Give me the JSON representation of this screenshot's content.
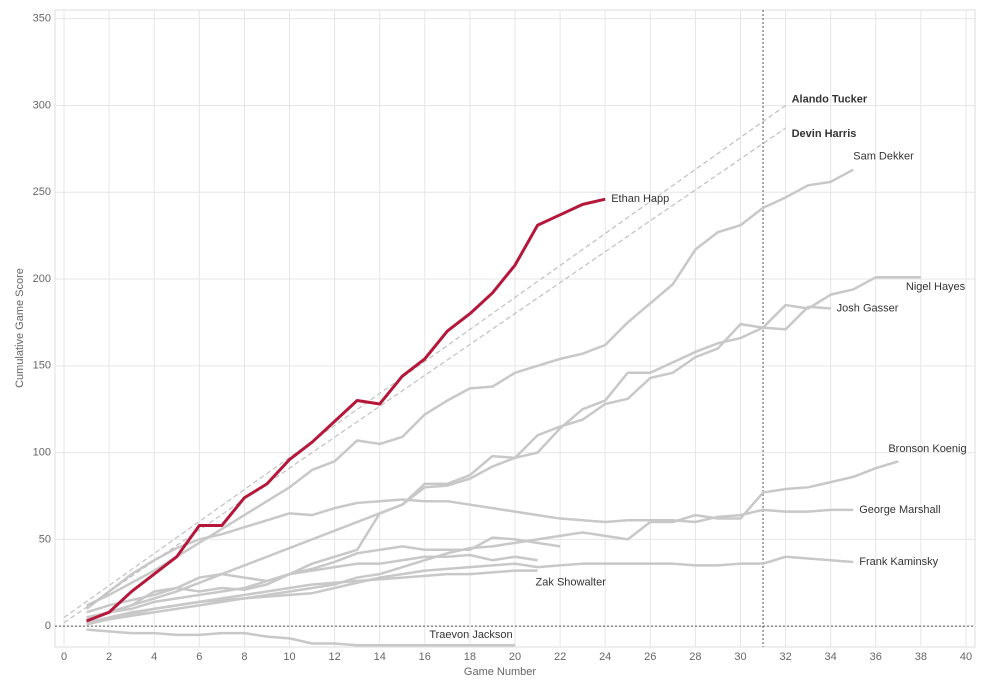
{
  "chart_data": {
    "type": "line",
    "x_label": "Game Number",
    "y_label": "Cumulative Game Score",
    "xlim": [
      -0.4,
      40.4
    ],
    "ylim": [
      -12,
      355
    ],
    "xticks": [
      0,
      2,
      4,
      6,
      8,
      10,
      12,
      14,
      16,
      18,
      20,
      22,
      24,
      26,
      28,
      30,
      32,
      34,
      36,
      38,
      40
    ],
    "yticks": [
      0,
      50,
      100,
      150,
      200,
      250,
      300,
      350
    ],
    "grid": true,
    "reference_x": 31,
    "reference_y": 0,
    "x": [
      1,
      2,
      3,
      4,
      5,
      6,
      7,
      8,
      9,
      10,
      11,
      12,
      13,
      14,
      15,
      16,
      17,
      18,
      19,
      20,
      21,
      22,
      23,
      24,
      25,
      26,
      27,
      28,
      29,
      30,
      31,
      32,
      33,
      34,
      35,
      36,
      37,
      38
    ],
    "series": [
      {
        "name": "Ethan Happ",
        "color": "#b5173a",
        "values": [
          3,
          8,
          20,
          30,
          40,
          58,
          58,
          74,
          82,
          96,
          106,
          118,
          130,
          128,
          144,
          154,
          170,
          180,
          192,
          208,
          231,
          237,
          243,
          246,
          null,
          null,
          null,
          null,
          null,
          null,
          null,
          null,
          null,
          null,
          null,
          null,
          null,
          null
        ]
      },
      {
        "name": "Alando Tucker",
        "color": "#c0c0c0",
        "dashed": true,
        "x": [
          0,
          32
        ],
        "values": [
          5,
          300
        ]
      },
      {
        "name": "Devin Harris",
        "color": "#c0c0c0",
        "dashed": true,
        "x": [
          0,
          32
        ],
        "values": [
          2,
          287
        ]
      },
      {
        "name": "Sam Dekker",
        "color": "#c8c8c8",
        "values": [
          12,
          18,
          25,
          32,
          40,
          48,
          56,
          64,
          72,
          80,
          90,
          95,
          107,
          105,
          109,
          122,
          130,
          137,
          138,
          146,
          150,
          154,
          157,
          162,
          175,
          186,
          197,
          217,
          227,
          231,
          241,
          247,
          254,
          256,
          263,
          null,
          null,
          null
        ]
      },
      {
        "name": "Nigel Hayes",
        "color": "#c8c8c8",
        "values": [
          5,
          8,
          10,
          14,
          16,
          18,
          20,
          22,
          26,
          30,
          36,
          40,
          44,
          65,
          70,
          82,
          82,
          87,
          98,
          97,
          100,
          114,
          125,
          130,
          146,
          146,
          152,
          158,
          163,
          166,
          172,
          185,
          183,
          191,
          194,
          201,
          201,
          201
        ]
      },
      {
        "name": "Josh Gasser",
        "color": "#c8c8c8",
        "values": [
          4,
          8,
          12,
          16,
          20,
          25,
          30,
          35,
          40,
          45,
          50,
          55,
          60,
          65,
          70,
          80,
          81,
          85,
          92,
          97,
          110,
          115,
          119,
          128,
          131,
          143,
          146,
          155,
          160,
          174,
          172,
          171,
          184,
          183,
          null,
          null,
          null,
          null
        ]
      },
      {
        "name": "Bronson Koenig",
        "color": "#c8c8c8",
        "values": [
          2,
          4,
          6,
          8,
          10,
          12,
          14,
          16,
          18,
          20,
          22,
          24,
          28,
          30,
          34,
          38,
          42,
          45,
          46,
          48,
          50,
          52,
          54,
          52,
          50,
          60,
          60,
          64,
          62,
          62,
          77,
          79,
          80,
          83,
          86,
          91,
          95,
          null
        ]
      },
      {
        "name": "George Marshall",
        "color": "#c8c8c8",
        "values": [
          10,
          20,
          30,
          38,
          45,
          50,
          53,
          57,
          61,
          65,
          64,
          68,
          71,
          72,
          73,
          72,
          72,
          70,
          68,
          66,
          64,
          62,
          61,
          60,
          61,
          61,
          61,
          60,
          63,
          64,
          67,
          66,
          66,
          67,
          67,
          null,
          null,
          null
        ]
      },
      {
        "name": "Frank Kaminsky",
        "color": "#c8c8c8",
        "values": [
          1,
          4,
          7,
          10,
          12,
          14,
          15,
          16,
          17,
          18,
          19,
          22,
          25,
          28,
          30,
          32,
          33,
          34,
          35,
          36,
          34,
          35,
          36,
          36,
          36,
          36,
          36,
          35,
          35,
          36,
          36,
          40,
          39,
          38,
          37,
          null,
          null,
          null
        ]
      },
      {
        "name": "Zak Showalter",
        "color": "#c8c8c8",
        "values": [
          2,
          5,
          8,
          10,
          12,
          14,
          16,
          18,
          20,
          22,
          24,
          25,
          26,
          27,
          28,
          29,
          30,
          30,
          31,
          32,
          32,
          null,
          null,
          null,
          null,
          null,
          null,
          null,
          null,
          null,
          null,
          null,
          null,
          null,
          null,
          null,
          null,
          null
        ]
      },
      {
        "name": "Traevon Jackson",
        "color": "#c8c8c8",
        "values": [
          -2,
          -3,
          -4,
          -4,
          -5,
          -5,
          -4,
          -4,
          -6,
          -7,
          -10,
          -10,
          -11,
          -11,
          -11,
          -11,
          -11,
          -11,
          -11,
          -11,
          null,
          null,
          null,
          null,
          null,
          null,
          null,
          null,
          null,
          null,
          null,
          null,
          null,
          null,
          null,
          null,
          null,
          null
        ]
      },
      {
        "color": "#c8c8c8",
        "values": [
          8,
          12,
          15,
          18,
          22,
          28,
          30,
          28,
          26,
          30,
          32,
          34,
          36,
          36,
          38,
          40,
          40,
          41,
          38,
          40,
          38,
          null,
          null,
          null,
          null,
          null,
          null,
          null,
          null,
          null,
          null,
          null,
          null,
          null,
          null,
          null,
          null,
          null
        ]
      },
      {
        "color": "#c8c8c8",
        "values": [
          5,
          8,
          12,
          20,
          22,
          20,
          22,
          21,
          24,
          30,
          33,
          37,
          42,
          44,
          46,
          44,
          44,
          44,
          51,
          50,
          48,
          46,
          null,
          null,
          null,
          null,
          null,
          null,
          null,
          null,
          null,
          null,
          null,
          null,
          null,
          null,
          null,
          null
        ]
      }
    ]
  }
}
